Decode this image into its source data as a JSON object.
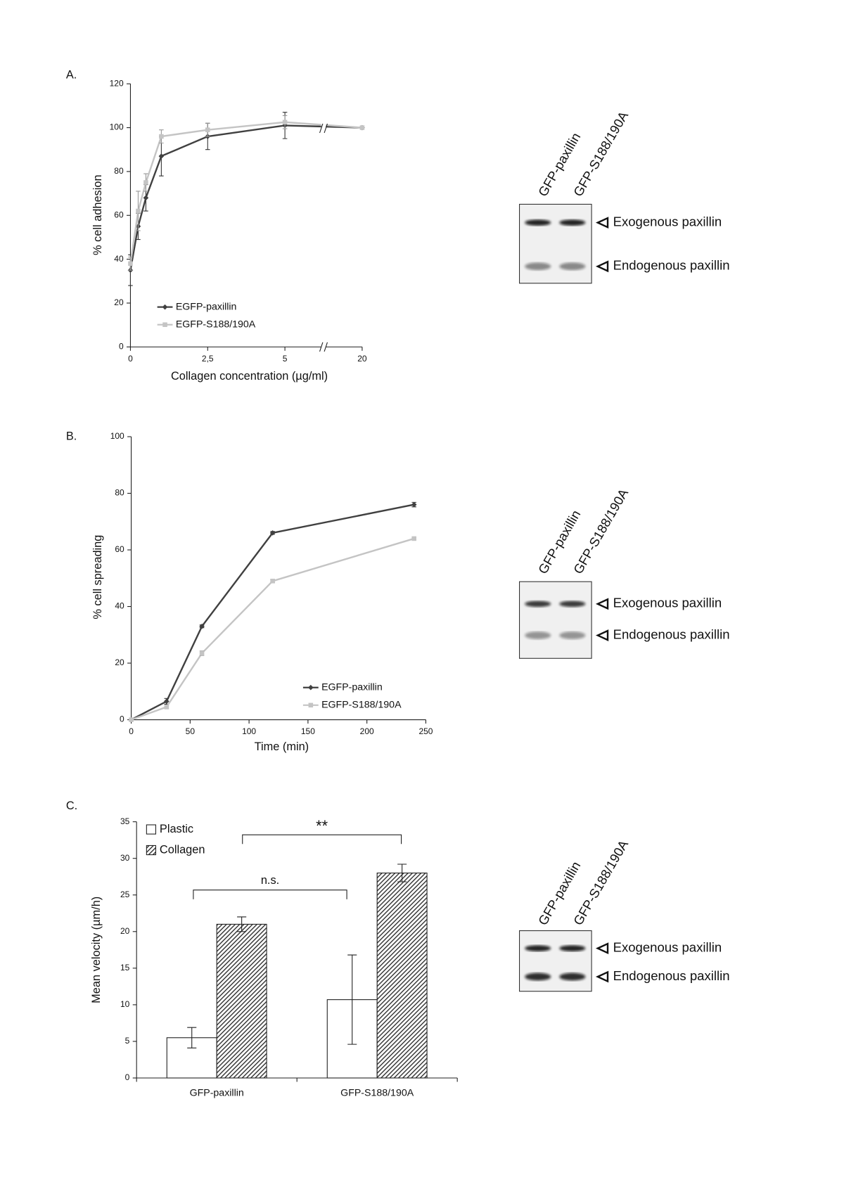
{
  "chart_data": [
    {
      "type": "line",
      "panel": "A.",
      "xlabel": "Collagen concentration (µg/ml)",
      "ylabel": "% cell adhesion",
      "x": [
        0,
        0.25,
        0.5,
        1,
        2.5,
        5,
        20
      ],
      "series": [
        {
          "name": "EGFP-paxillin",
          "color": "#404040",
          "marker": "diamond",
          "values": [
            35,
            55,
            68,
            87,
            96,
            101,
            100
          ],
          "errors": [
            7,
            6,
            6,
            9,
            6,
            6,
            0
          ]
        },
        {
          "name": "EGFP-S188/190A",
          "color": "#c4c4c4",
          "marker": "square",
          "values": [
            38,
            62,
            75,
            96,
            99,
            102.5,
            100
          ],
          "errors": [
            3,
            9,
            4,
            3,
            3,
            3,
            0
          ]
        }
      ],
      "xlim": [
        0,
        20
      ],
      "xticks": [
        0,
        {
          "value": 2.5,
          "label": "2,5"
        },
        5,
        20
      ],
      "axis_break": true,
      "ylim": [
        0,
        120
      ],
      "yticks": [
        0,
        20,
        40,
        60,
        80,
        100,
        120
      ]
    },
    {
      "type": "line",
      "panel": "B.",
      "xlabel": "Time (min)",
      "ylabel": "% cell spreading",
      "x": [
        0,
        30,
        60,
        120,
        240
      ],
      "series": [
        {
          "name": "EGFP-paxillin",
          "color": "#404040",
          "marker": "diamond",
          "values": [
            0,
            6.5,
            33,
            66,
            76
          ],
          "errors": [
            0,
            1,
            0.5,
            0.5,
            0.8
          ]
        },
        {
          "name": "EGFP-S188/190A",
          "color": "#c4c4c4",
          "marker": "square",
          "values": [
            0,
            4.5,
            23.5,
            49,
            64
          ],
          "errors": [
            0,
            0.5,
            0.8,
            0.5,
            0.3
          ]
        }
      ],
      "xlim": [
        0,
        250
      ],
      "xticks": [
        0,
        50,
        100,
        150,
        200,
        250
      ],
      "axis_break": false,
      "ylim": [
        0,
        100
      ],
      "yticks": [
        0,
        20,
        40,
        60,
        80,
        100
      ]
    },
    {
      "type": "bar",
      "panel": "C.",
      "ylabel": "Mean velocity (µm/h)",
      "categories": [
        "GFP-paxillin",
        "GFP-S188/190A"
      ],
      "series": [
        {
          "name": "Plastic",
          "color": "#ffffff",
          "hatch": false,
          "values": [
            5.5,
            10.7
          ],
          "errors": [
            1.4,
            6.1
          ]
        },
        {
          "name": "Collagen",
          "color": "#333333",
          "hatch": true,
          "values": [
            21,
            28
          ],
          "errors": [
            1,
            1.2
          ]
        }
      ],
      "ylim": [
        0,
        35
      ],
      "yticks": [
        0,
        5,
        10,
        15,
        20,
        25,
        30,
        35
      ],
      "annotations": [
        "n.s.",
        "**"
      ]
    }
  ],
  "blots": [
    {
      "lanes": [
        "GFP-paxillin",
        "GFP-S188/190A"
      ],
      "bands": [
        "Exogenous paxillin",
        "Endogenous paxillin"
      ]
    },
    {
      "lanes": [
        "GFP-paxillin",
        "GFP-S188/190A"
      ],
      "bands": [
        "Exogenous paxillin",
        "Endogenous paxillin"
      ]
    },
    {
      "lanes": [
        "GFP-paxillin",
        "GFP-S188/190A"
      ],
      "bands": [
        "Exogenous paxillin",
        "Endogenous paxillin"
      ]
    }
  ]
}
